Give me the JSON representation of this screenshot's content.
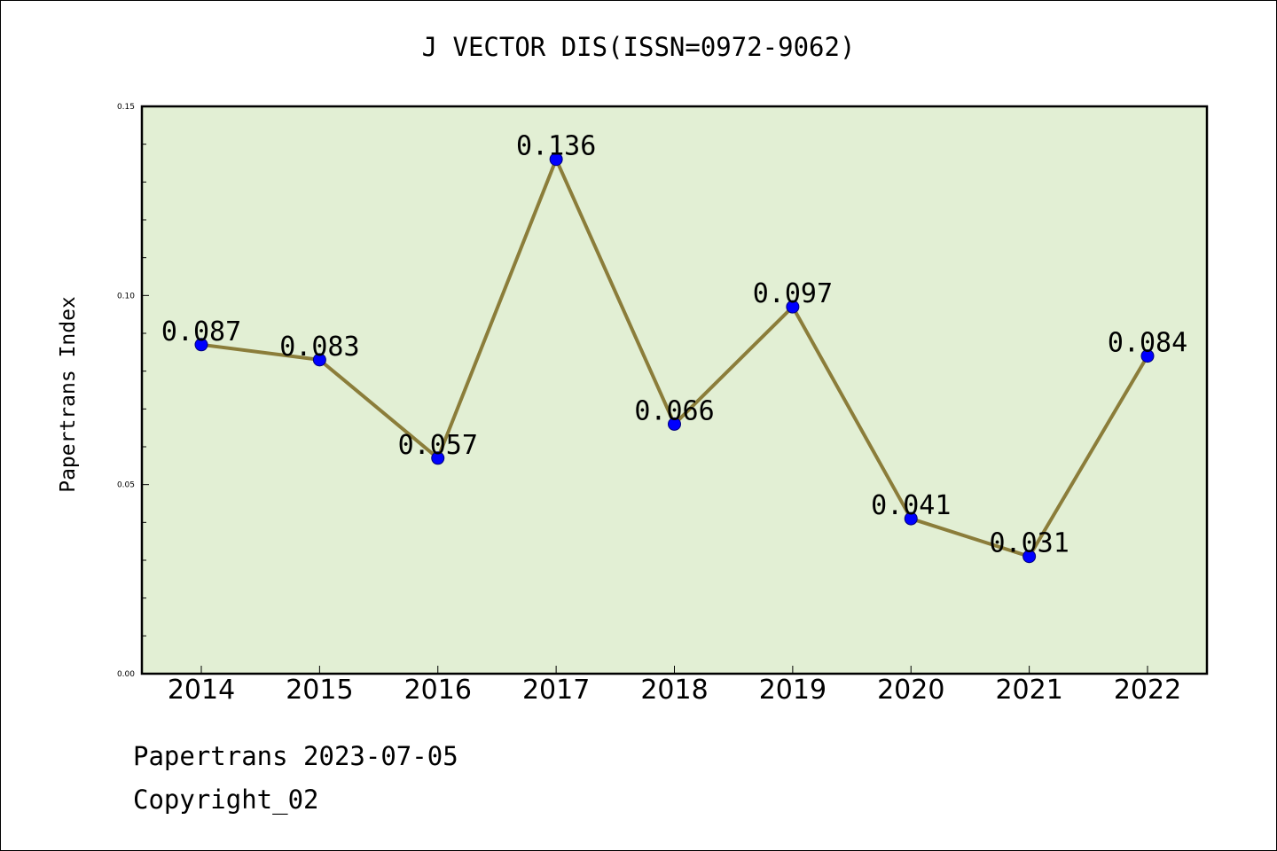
{
  "header": {
    "title": "J VECTOR DIS(ISSN=0972-9062)"
  },
  "footer": {
    "line1": "Papertrans 2023-07-05",
    "line2": "Copyright_02"
  },
  "chart_data": {
    "type": "line",
    "title": "J VECTOR DIS(ISSN=0972-9062)",
    "xlabel": "",
    "ylabel": "Papertrans Index",
    "categories": [
      "2014",
      "2015",
      "2016",
      "2017",
      "2018",
      "2019",
      "2020",
      "2021",
      "2022"
    ],
    "series": [
      {
        "values": [
          0.087,
          0.083,
          0.057,
          0.136,
          0.066,
          0.097,
          0.041,
          0.031,
          0.084
        ]
      }
    ],
    "data_labels": [
      "0.087",
      "0.083",
      "0.057",
      "0.136",
      "0.066",
      "0.097",
      "0.041",
      "0.031",
      "0.084"
    ],
    "ylim": [
      0.0,
      0.15
    ],
    "yticks": [
      "0.00",
      "0.05",
      "0.10",
      "0.15"
    ],
    "grid": false,
    "colors": {
      "plot_background": "#e2efd4",
      "line": "#8b7d3a",
      "marker": "#0000ff"
    }
  }
}
